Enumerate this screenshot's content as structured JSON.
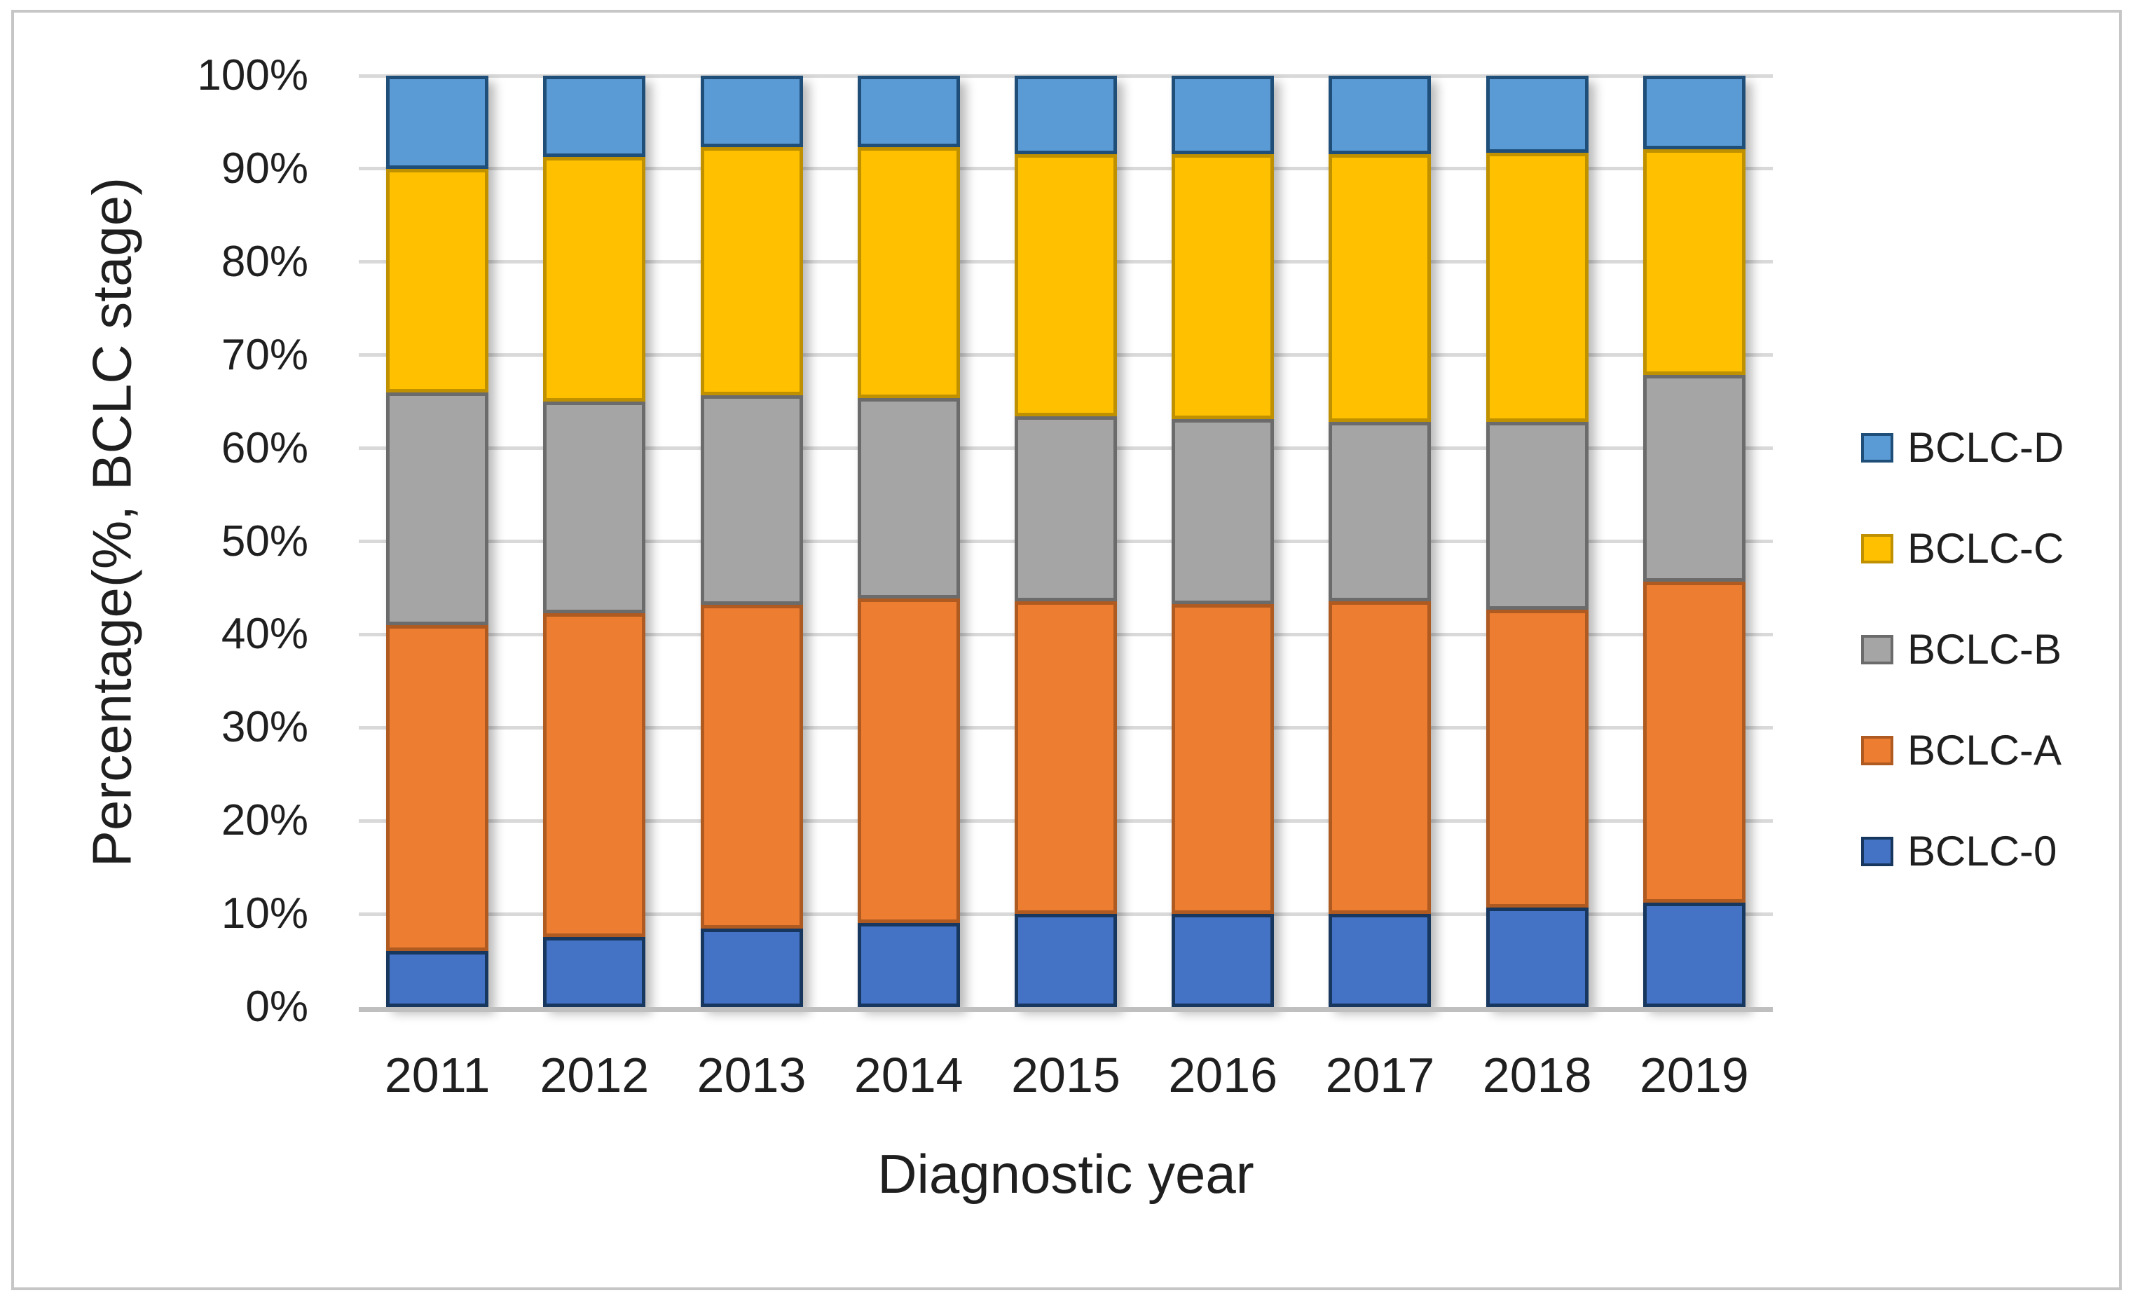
{
  "figure": {
    "background_color": "#FFFFFF",
    "frame_border_color": "#C6C6C6"
  },
  "chart_data": {
    "type": "bar",
    "stacked": true,
    "stacked_to_100_percent": true,
    "title": "",
    "xlabel": "Diagnostic year",
    "ylabel": "Percentage(%, BCLC stage)",
    "categories": [
      "2011",
      "2012",
      "2013",
      "2014",
      "2015",
      "2016",
      "2017",
      "2018",
      "2019"
    ],
    "y_tick_labels": [
      "0%",
      "10%",
      "20%",
      "30%",
      "40%",
      "50%",
      "60%",
      "70%",
      "80%",
      "90%",
      "100%"
    ],
    "ylim": [
      0,
      100
    ],
    "units": "percent",
    "grid": "horizontal",
    "grid_color": "#D9D9D9",
    "axis_line_color": "#BFBFBF",
    "legend_position": "right",
    "legend_order_top_to_bottom": [
      "BCLC-D",
      "BCLC-C",
      "BCLC-B",
      "BCLC-A",
      "BCLC-0"
    ],
    "series": [
      {
        "name": "BCLC-0",
        "color": "#4472C4",
        "border_color": "#17375E",
        "values": [
          6.0,
          7.5,
          8.4,
          9.0,
          10.0,
          10.0,
          10.0,
          10.7,
          11.2
        ]
      },
      {
        "name": "BCLC-A",
        "color": "#ED7D31",
        "border_color": "#AE5A21",
        "values": [
          35.0,
          34.8,
          34.8,
          34.9,
          33.6,
          33.3,
          33.6,
          32.0,
          34.5
        ]
      },
      {
        "name": "BCLC-B",
        "color": "#A5A5A5",
        "border_color": "#6B6B6B",
        "values": [
          25.0,
          22.7,
          22.5,
          21.5,
          19.8,
          19.8,
          19.2,
          20.1,
          22.2
        ]
      },
      {
        "name": "BCLC-C",
        "color": "#FFC000",
        "border_color": "#BF9000",
        "values": [
          24.0,
          26.3,
          26.6,
          26.9,
          28.2,
          28.5,
          28.8,
          28.9,
          24.2
        ]
      },
      {
        "name": "BCLC-D",
        "color": "#5B9BD5",
        "border_color": "#1F4E79",
        "values": [
          10.0,
          8.7,
          7.7,
          7.7,
          8.4,
          8.4,
          8.4,
          8.3,
          7.9
        ]
      }
    ]
  }
}
